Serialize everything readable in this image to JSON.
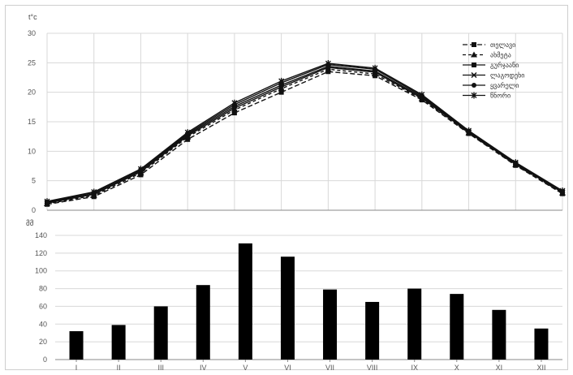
{
  "chart_data": [
    {
      "type": "line",
      "unit_label": "t°c",
      "categories": [
        "I",
        "II",
        "III",
        "IV",
        "V",
        "VI",
        "VII",
        "VIII",
        "IX",
        "X",
        "XI",
        "XII"
      ],
      "ylim": [
        0,
        30
      ],
      "yticks": [
        0,
        5,
        10,
        15,
        20,
        25,
        30
      ],
      "grid": true,
      "legend_position": "top-right",
      "series": [
        {
          "name": "თელავი",
          "dash": "6,3",
          "marker": "square",
          "values": [
            1.0,
            2.3,
            6.0,
            12.0,
            16.5,
            20.0,
            23.5,
            22.8,
            18.7,
            13.0,
            7.6,
            2.8
          ]
        },
        {
          "name": "ახმეტა",
          "dash": "4,3",
          "marker": "triangle",
          "values": [
            1.1,
            2.5,
            6.3,
            12.4,
            17.0,
            20.6,
            23.9,
            23.1,
            18.9,
            13.1,
            7.7,
            2.9
          ]
        },
        {
          "name": "გურჯაანი",
          "dash": "",
          "marker": "square",
          "values": [
            1.3,
            2.8,
            6.7,
            12.8,
            17.6,
            21.2,
            24.4,
            23.6,
            19.2,
            13.3,
            7.9,
            3.1
          ]
        },
        {
          "name": "ლაგოდეხი",
          "dash": "",
          "marker": "x",
          "values": [
            1.2,
            2.7,
            6.5,
            12.6,
            17.3,
            20.9,
            24.2,
            23.4,
            19.0,
            13.2,
            7.8,
            3.0
          ]
        },
        {
          "name": "ყვარელი",
          "dash": "",
          "marker": "circle",
          "values": [
            1.4,
            3.0,
            6.9,
            13.0,
            17.9,
            21.6,
            24.7,
            23.9,
            19.4,
            13.4,
            8.0,
            3.2
          ]
        },
        {
          "name": "წნორი",
          "dash": "",
          "marker": "star",
          "values": [
            1.5,
            3.1,
            7.0,
            13.2,
            18.2,
            21.9,
            24.9,
            24.1,
            19.6,
            13.5,
            8.1,
            3.3
          ]
        }
      ]
    },
    {
      "type": "bar",
      "unit_label": "მმ",
      "categories": [
        "I",
        "II",
        "III",
        "IV",
        "V",
        "VI",
        "VII",
        "VIII",
        "IX",
        "X",
        "XI",
        "XII"
      ],
      "values": [
        32,
        39,
        60,
        84,
        131,
        116,
        79,
        65,
        80,
        74,
        56,
        35
      ],
      "ylim": [
        0,
        140
      ],
      "yticks": [
        0,
        20,
        40,
        60,
        80,
        100,
        120,
        140
      ],
      "grid": true,
      "color": "#000000"
    }
  ]
}
